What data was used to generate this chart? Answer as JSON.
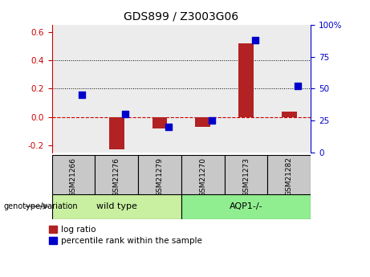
{
  "title": "GDS899 / Z3003G06",
  "categories": [
    "GSM21266",
    "GSM21276",
    "GSM21279",
    "GSM21270",
    "GSM21273",
    "GSM21282"
  ],
  "log_ratio": [
    0.0,
    -0.23,
    -0.08,
    -0.07,
    0.52,
    0.04
  ],
  "percentile_rank": [
    45,
    30,
    20,
    25,
    88,
    52
  ],
  "groups": [
    {
      "label": "wild type",
      "span": [
        0,
        3
      ],
      "color": "#c8f0a0"
    },
    {
      "label": "AQP1-/-",
      "span": [
        3,
        6
      ],
      "color": "#90ee90"
    }
  ],
  "bar_color": "#b22222",
  "dot_color": "#0000cc",
  "ylim_left": [
    -0.25,
    0.65
  ],
  "ylim_right": [
    0,
    100
  ],
  "yticks_left": [
    -0.2,
    0.0,
    0.2,
    0.4,
    0.6
  ],
  "yticks_right": [
    0,
    25,
    50,
    75,
    100
  ],
  "hlines": [
    0.2,
    0.4
  ],
  "dashed_zero_color": "#cc0000",
  "left_axis_color": "#cc0000",
  "right_axis_color": "#0000cc",
  "legend_bar_label": "log ratio",
  "legend_dot_label": "percentile rank within the sample",
  "genotype_label": "genotype/variation",
  "group_box_color": "#c8c8c8",
  "bar_width": 0.35,
  "dot_size": 28,
  "plot_bg_color": "#ececec",
  "fig_width": 4.61,
  "fig_height": 3.45,
  "fig_dpi": 100
}
